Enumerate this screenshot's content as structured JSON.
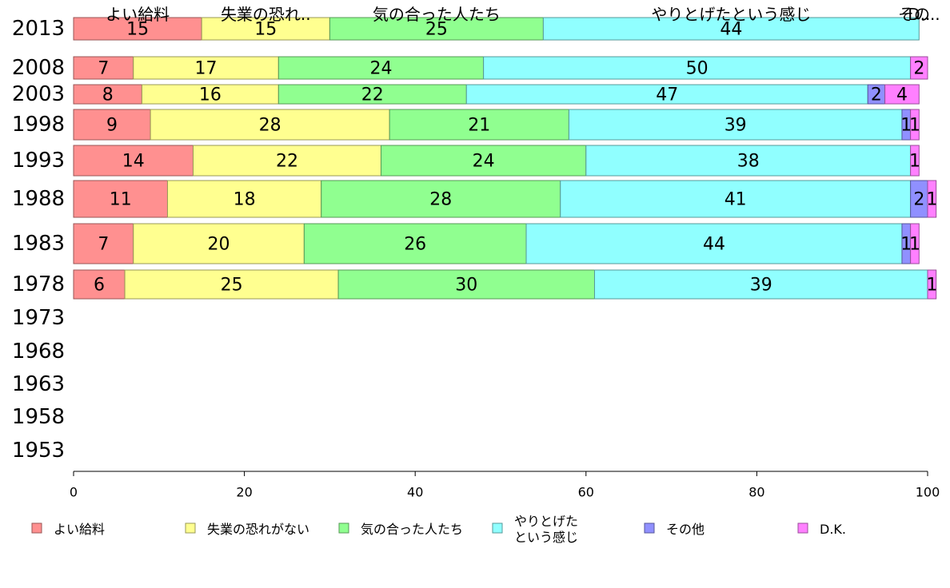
{
  "chart_data": {
    "type": "bar",
    "orientation": "horizontal",
    "stacked": true,
    "categories": [
      "2013",
      "2008",
      "2003",
      "1998",
      "1993",
      "1988",
      "1983",
      "1978",
      "1973",
      "1968",
      "1963",
      "1958",
      "1953"
    ],
    "series": [
      {
        "name": "よい給料",
        "color": "#ff9090",
        "values": [
          15,
          7,
          8,
          9,
          14,
          11,
          7,
          6,
          null,
          null,
          null,
          null,
          null
        ]
      },
      {
        "name": "失業の恐れがない",
        "color": "#ffff90",
        "values": [
          15,
          17,
          16,
          28,
          22,
          18,
          20,
          25,
          null,
          null,
          null,
          null,
          null
        ]
      },
      {
        "name": "気の合った人たち",
        "color": "#90ff90",
        "values": [
          25,
          24,
          22,
          21,
          24,
          28,
          26,
          30,
          null,
          null,
          null,
          null,
          null
        ]
      },
      {
        "name": "やりとげた\nという感じ",
        "color": "#90ffff",
        "values": [
          44,
          50,
          47,
          39,
          38,
          41,
          44,
          39,
          null,
          null,
          null,
          null,
          null
        ]
      },
      {
        "name": "その他",
        "color": "#9090ff",
        "values": [
          0,
          0,
          2,
          1,
          0,
          2,
          1,
          0,
          null,
          null,
          null,
          null,
          null
        ]
      },
      {
        "name": "D.K.",
        "color": "#ff80ff",
        "values": [
          0,
          2,
          4,
          1,
          1,
          1,
          1,
          1,
          null,
          null,
          null,
          null,
          null
        ]
      }
    ],
    "top_labels": [
      "よい給料",
      "失業の恐れ..",
      "気の合った人たち",
      "やりとげたという感じ",
      "その..",
      "D.."
    ],
    "xlim": [
      0,
      100
    ],
    "xticks": [
      0,
      20,
      40,
      60,
      80,
      100
    ],
    "xlabel": "",
    "ylabel": "",
    "title": "",
    "legend_position": "bottom",
    "grid": false
  }
}
